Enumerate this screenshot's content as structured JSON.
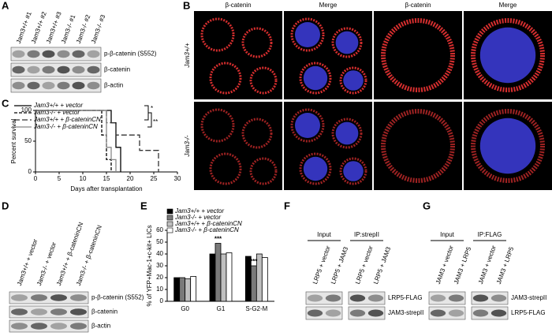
{
  "panel_labels": [
    "A",
    "B",
    "C",
    "D",
    "E",
    "F",
    "G"
  ],
  "blot_a": {
    "lanes": [
      "Jam3+/+ #1",
      "Jam3+/+ #2",
      "Jam3+/+ #3",
      "Jam3-/- #1",
      "Jam3-/- #2",
      "Jam3-/- #3"
    ],
    "rows": [
      "p-β-catenin (S552)",
      "β-catenin",
      "β-actin"
    ]
  },
  "images_b": {
    "columns": [
      "β-catenin",
      "Merge",
      "β-catenin",
      "Merge"
    ],
    "rows": [
      "Jam3+/+",
      "Jam3-/-"
    ]
  },
  "blot_d": {
    "lanes": [
      "Jam3+/+ + vector",
      "Jam3-/- + vector",
      "Jam3+/+ + β-cateninCN",
      "Jam3-/- + β-cateninCN"
    ],
    "rows": [
      "p-β-catenin (S552)",
      "β-catenin",
      "β-actin"
    ]
  },
  "blot_f": {
    "groups": [
      "Input",
      "IP:strepII"
    ],
    "lanes": [
      "LRP5 + vector",
      "LRP5 + JAM3",
      "LRP5 + vector",
      "LRP5 + JAM3"
    ],
    "rows": [
      "LRP5-FLAG",
      "JAM3-strepII"
    ]
  },
  "blot_g": {
    "groups": [
      "Input",
      "IP:FLAG"
    ],
    "lanes": [
      "JAM3 + vector",
      "JAM3 + LRP5",
      "JAM3 + vector",
      "JAM3 + LRP5"
    ],
    "rows": [
      "JAM3-strepII",
      "LRP5-FLAG"
    ]
  },
  "chart_data": [
    {
      "type": "step",
      "xlabel": "Days after transplantation",
      "ylabel": "Percent survival",
      "xlim": [
        0,
        30
      ],
      "xticks": [
        0,
        5,
        10,
        15,
        20,
        25,
        30
      ],
      "ylim": [
        0,
        100
      ],
      "yticks": [
        0,
        50,
        100
      ],
      "series": [
        {
          "name": "Jam3+/+ + vector",
          "color": "#000000",
          "dash": "none",
          "x": [
            0,
            16,
            17,
            18
          ],
          "values": [
            100,
            80,
            40,
            0
          ]
        },
        {
          "name": "Jam3-/- + vector",
          "color": "#000000",
          "dash": "4,2",
          "x": [
            0,
            14,
            15,
            16
          ],
          "values": [
            100,
            60,
            20,
            0
          ]
        },
        {
          "name": "Jam3+/+ + β-cateninCN",
          "color": "#333333",
          "dash": "7,3",
          "x": [
            0,
            15,
            17,
            20,
            22,
            26
          ],
          "values": [
            100,
            80,
            60,
            60,
            35,
            0
          ]
        },
        {
          "name": "Jam3-/- + β-cateninCN",
          "color": "#888888",
          "dash": "none",
          "x": [
            0,
            15,
            16,
            17
          ],
          "values": [
            100,
            40,
            20,
            0
          ]
        }
      ],
      "annotations": [
        "*",
        "**"
      ]
    },
    {
      "type": "bar",
      "ylabel": "% of YFP+Mac-1+c-kit+ LICs",
      "categories": [
        "G0",
        "G1",
        "S-G2-M"
      ],
      "ylim": [
        0,
        60
      ],
      "yticks": [
        0,
        10,
        20,
        30,
        40,
        50,
        60
      ],
      "series": [
        {
          "name": "Jam3+/+ + vector",
          "color": "#000000",
          "values": [
            20,
            40,
            38
          ]
        },
        {
          "name": "Jam3-/- + vector",
          "color": "#7a7a7a",
          "values": [
            20,
            49,
            30
          ]
        },
        {
          "name": "Jam3+/+ + β-cateninCN",
          "color": "#c0c0c0",
          "values": [
            19,
            40,
            40
          ]
        },
        {
          "name": "Jam3-/- + β-cateninCN",
          "color": "#ffffff",
          "values": [
            21,
            41,
            37
          ]
        }
      ],
      "annotations": [
        "***",
        "***"
      ]
    }
  ]
}
